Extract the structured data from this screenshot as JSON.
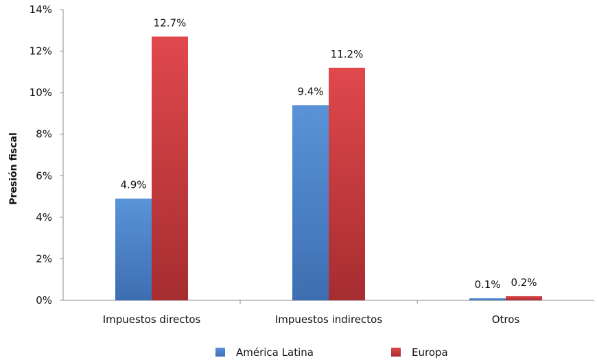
{
  "chart_data": {
    "type": "bar",
    "categories": [
      "Impuestos directos",
      "Impuestos indirectos",
      "Otros"
    ],
    "series": [
      {
        "name": "América Latina",
        "values": [
          4.9,
          9.4,
          0.1
        ],
        "color": "#4a7ec4",
        "labels": [
          "4.9%",
          "9.4%",
          "0.1%"
        ]
      },
      {
        "name": "Europa",
        "values": [
          12.7,
          11.2,
          0.2
        ],
        "color": "#c9383c",
        "labels": [
          "12.7%",
          "11.2%",
          "0.2%"
        ]
      }
    ],
    "ylabel": "Presión fiscal",
    "ylim": [
      0,
      14
    ],
    "yticks": [
      0,
      2,
      4,
      6,
      8,
      10,
      12,
      14
    ],
    "ytick_labels": [
      "0%",
      "2%",
      "4%",
      "6%",
      "8%",
      "10%",
      "12%",
      "14%"
    ],
    "grid": false,
    "legend_position": "bottom"
  }
}
